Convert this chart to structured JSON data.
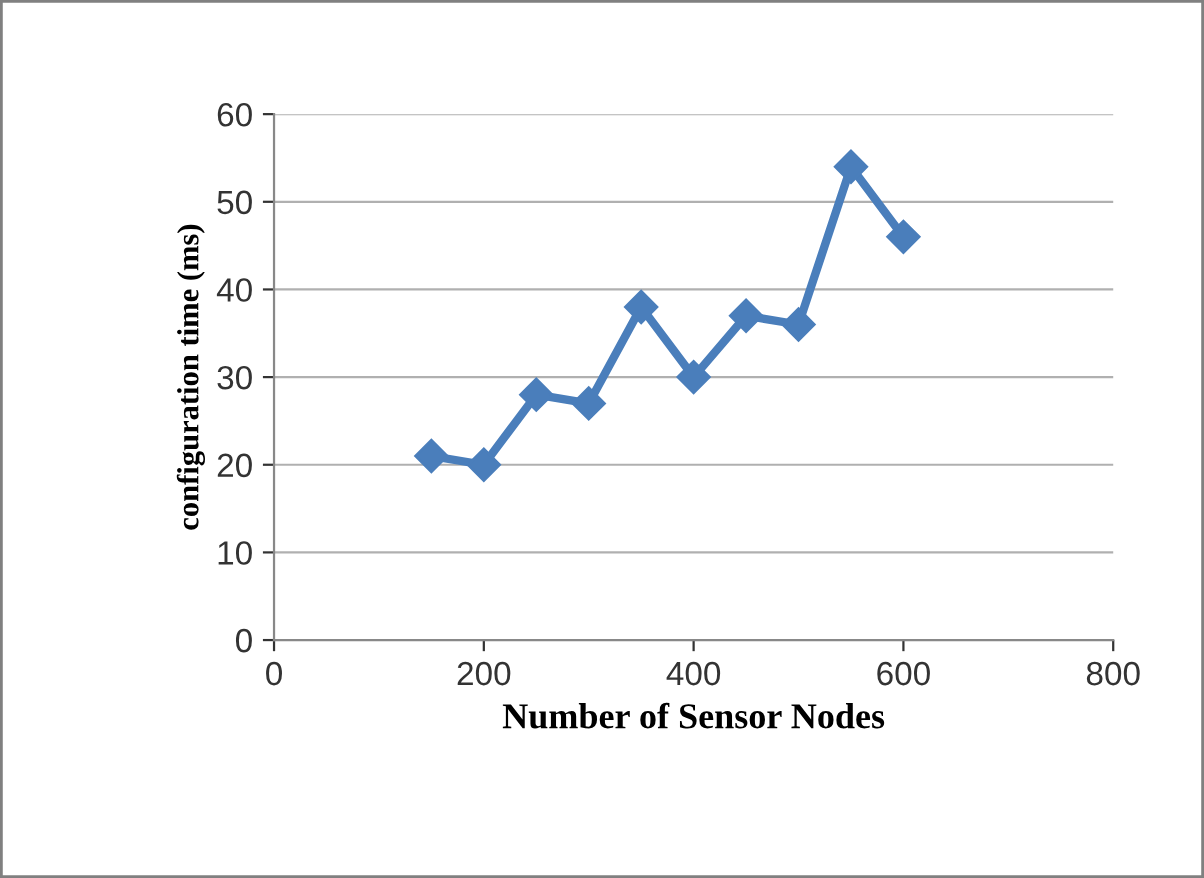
{
  "chart_data": {
    "type": "line",
    "xlabel": "Number of Sensor Nodes",
    "ylabel": "configuration time (ms)",
    "x": [
      150,
      200,
      250,
      300,
      350,
      400,
      450,
      500,
      550,
      600
    ],
    "series": [
      {
        "color": "#4a7ebb",
        "values": [
          21,
          20,
          28,
          27,
          38,
          30,
          37,
          36,
          54,
          46
        ]
      }
    ],
    "xlim": [
      0,
      800
    ],
    "xticks": [
      0,
      200,
      400,
      600,
      800
    ],
    "ylim": [
      0,
      60
    ],
    "yticks": [
      0,
      10,
      20,
      30,
      40,
      50,
      60
    ],
    "grid": "y",
    "legend": false,
    "marker": "diamond",
    "line_style": "solid"
  }
}
